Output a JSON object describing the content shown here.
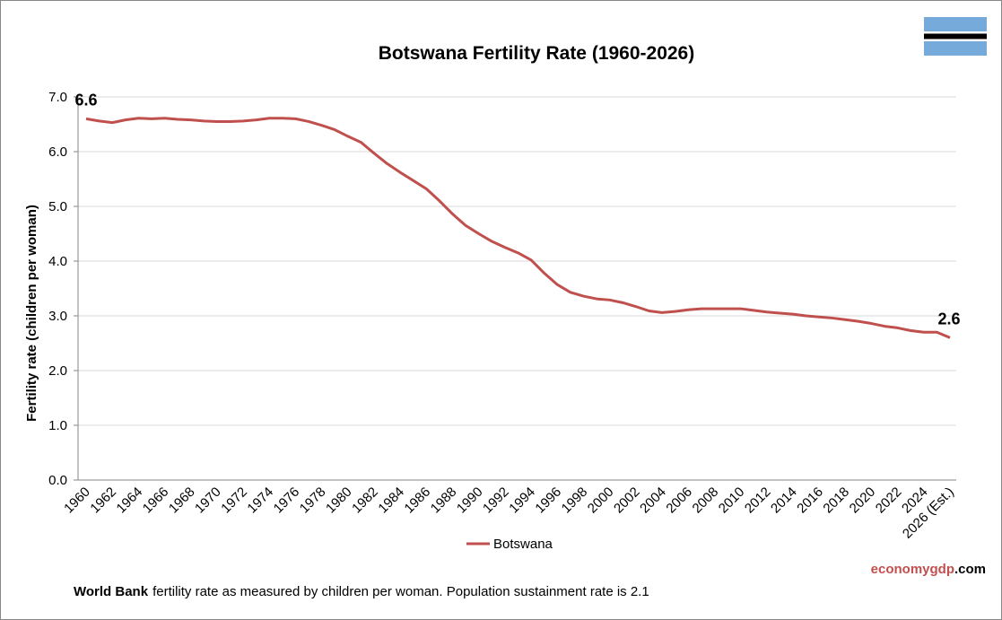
{
  "chart_data": {
    "type": "line",
    "title": "Botswana Fertility Rate (1960-2026)",
    "y_label": "Fertility rate (children per woman)",
    "categories": [
      "1960",
      null,
      "1962",
      null,
      "1964",
      null,
      "1966",
      null,
      "1968",
      null,
      "1970",
      null,
      "1972",
      null,
      "1974",
      null,
      "1976",
      null,
      "1978",
      null,
      "1980",
      null,
      "1982",
      null,
      "1984",
      null,
      "1986",
      null,
      "1988",
      null,
      "1990",
      null,
      "1992",
      null,
      "1994",
      null,
      "1996",
      null,
      "1998",
      null,
      "2000",
      null,
      "2002",
      null,
      "2004",
      null,
      "2006",
      null,
      "2008",
      null,
      "2010",
      null,
      "2012",
      null,
      "2014",
      null,
      "2016",
      null,
      "2018",
      null,
      "2020",
      null,
      "2022",
      null,
      "2024",
      null,
      "2026 (Est.)"
    ],
    "series": [
      {
        "name": "Botswana",
        "color": "#c0504d",
        "values": [
          6.6,
          6.56,
          6.53,
          6.58,
          6.61,
          6.6,
          6.61,
          6.59,
          6.58,
          6.56,
          6.55,
          6.55,
          6.56,
          6.58,
          6.61,
          6.61,
          6.6,
          6.55,
          6.48,
          6.4,
          6.28,
          6.17,
          5.97,
          5.78,
          5.62,
          5.47,
          5.32,
          5.1,
          4.86,
          4.65,
          4.5,
          4.36,
          4.25,
          4.15,
          4.02,
          3.78,
          3.57,
          3.43,
          3.36,
          3.31,
          3.29,
          3.24,
          3.17,
          3.09,
          3.06,
          3.08,
          3.11,
          3.13,
          3.13,
          3.13,
          3.13,
          3.1,
          3.07,
          3.05,
          3.03,
          3.0,
          2.98,
          2.96,
          2.93,
          2.9,
          2.86,
          2.81,
          2.78,
          2.73,
          2.7,
          2.7,
          2.6
        ],
        "value_labels": [
          "6.6",
          null,
          null,
          null,
          null,
          null,
          null,
          null,
          null,
          null,
          null,
          null,
          null,
          null,
          null,
          null,
          null,
          null,
          null,
          null,
          null,
          null,
          null,
          null,
          null,
          null,
          null,
          null,
          null,
          null,
          null,
          null,
          null,
          null,
          null,
          null,
          null,
          null,
          null,
          null,
          null,
          null,
          null,
          null,
          null,
          null,
          null,
          null,
          null,
          null,
          null,
          null,
          null,
          null,
          null,
          null,
          null,
          null,
          null,
          null,
          null,
          null,
          null,
          null,
          null,
          null,
          "2.6"
        ]
      }
    ],
    "ylim": [
      0,
      7
    ],
    "yticks": [
      {
        "value": 0,
        "label": "0.0"
      },
      {
        "value": 1,
        "label": "1.0"
      },
      {
        "value": 2,
        "label": "2.0"
      },
      {
        "value": 3,
        "label": "3.0"
      },
      {
        "value": 4,
        "label": "4.0"
      },
      {
        "value": 5,
        "label": "5.0"
      },
      {
        "value": 6,
        "label": "6.0"
      },
      {
        "value": 7,
        "label": "7.0"
      }
    ],
    "grid": true,
    "legend": "bottom"
  },
  "brand": {
    "name": "economygdp",
    "suffix": ".com"
  },
  "footer": {
    "source": "World Bank",
    "text": "fertility rate as measured by children per woman.  Population sustainment rate is 2.1"
  }
}
